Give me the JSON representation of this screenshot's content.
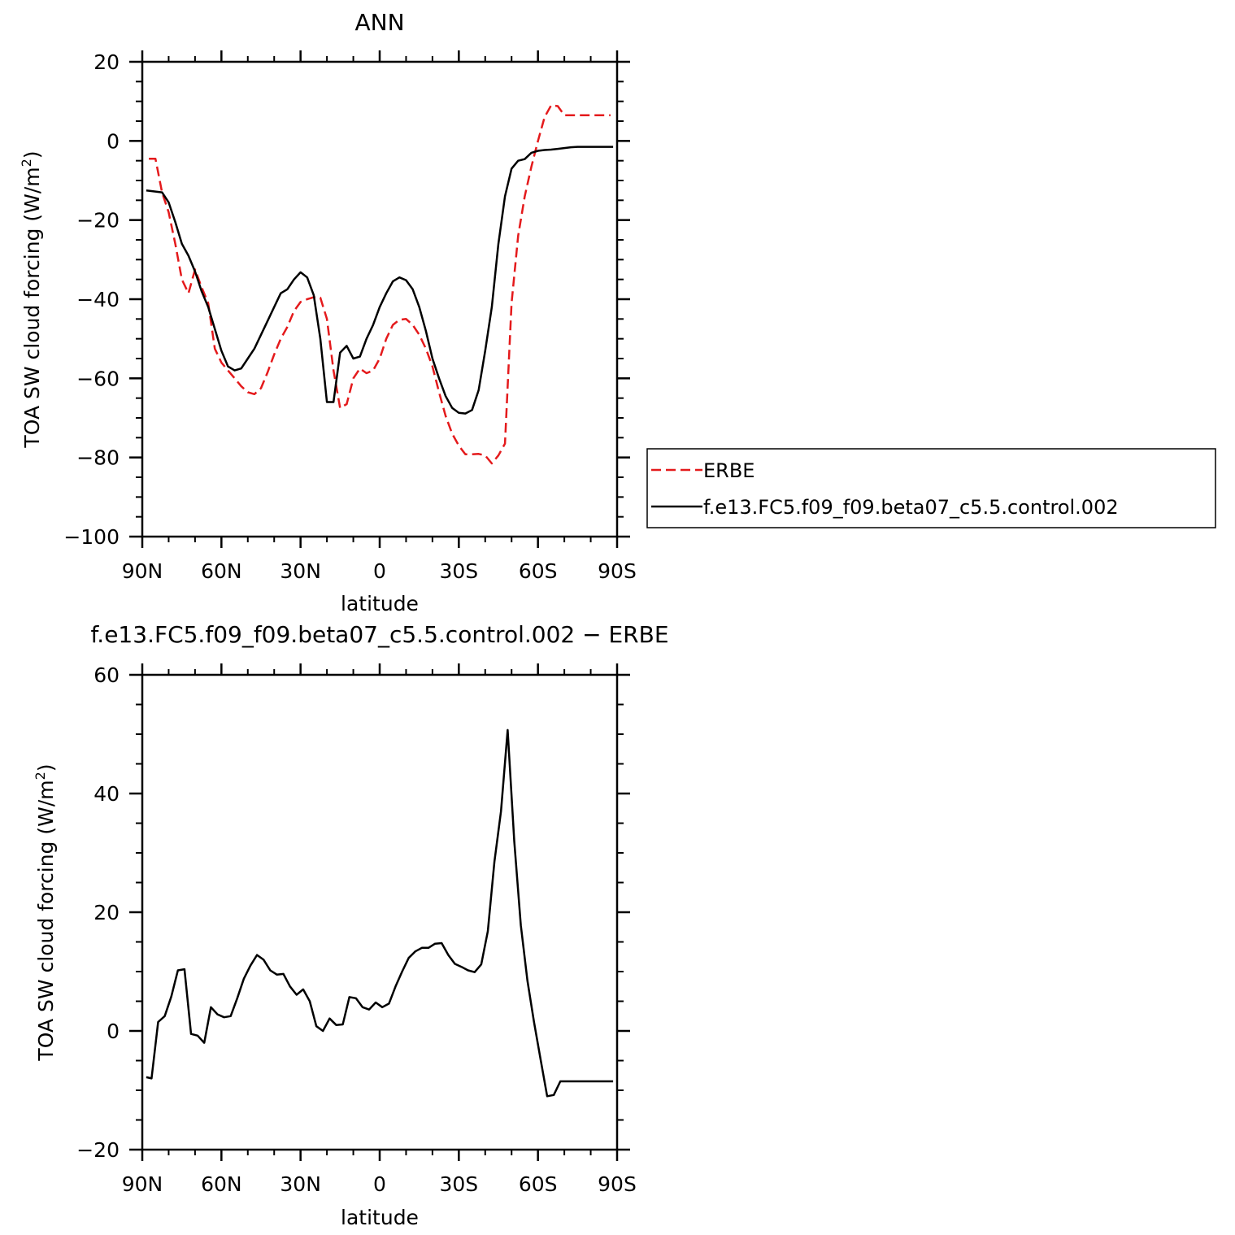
{
  "colors": {
    "model": "#000000",
    "obs": "#e41a1c",
    "axis": "#000000",
    "background": "#ffffff"
  },
  "chart_data": [
    {
      "type": "line",
      "title": "ANN",
      "xlabel": "latitude",
      "ylabel": "TOA SW cloud forcing (W/m²)",
      "ylabel_main": "TOA SW cloud forcing (W/m",
      "ylabel_sup": "2",
      "ylabel_end": ")",
      "xlim": [
        90,
        -90
      ],
      "ylim": [
        -100,
        20
      ],
      "xticks": [
        {
          "value": 90,
          "label": "90N"
        },
        {
          "value": 60,
          "label": "60N"
        },
        {
          "value": 30,
          "label": "30N"
        },
        {
          "value": 0,
          "label": "0"
        },
        {
          "value": -30,
          "label": "30S"
        },
        {
          "value": -60,
          "label": "60S"
        },
        {
          "value": -90,
          "label": "90S"
        }
      ],
      "yticks": [
        {
          "value": 20,
          "label": "20"
        },
        {
          "value": 0,
          "label": "0"
        },
        {
          "value": -20,
          "label": "−20"
        },
        {
          "value": -40,
          "label": "−40"
        },
        {
          "value": -60,
          "label": "−60"
        },
        {
          "value": -80,
          "label": "−80"
        },
        {
          "value": -100,
          "label": "−100"
        }
      ],
      "legend_position": "right",
      "series": [
        {
          "name": "ERBE",
          "color": "#e41a1c",
          "dash": "dashed",
          "x": [
            87.5,
            85,
            82.5,
            80,
            77.5,
            75,
            72.5,
            70,
            67.5,
            65,
            62.5,
            60,
            57.5,
            55,
            52.5,
            50,
            47.5,
            45,
            42.5,
            40,
            37.5,
            35,
            32.5,
            30,
            27.5,
            25,
            22.5,
            20,
            17.5,
            15,
            12.5,
            10,
            7.5,
            5,
            2.5,
            0,
            -2.5,
            -5,
            -7.5,
            -10,
            -12.5,
            -15,
            -17.5,
            -20,
            -22.5,
            -25,
            -27.5,
            -30,
            -32.5,
            -35,
            -37.5,
            -40,
            -42.5,
            -45,
            -47.5,
            -50,
            -52.5,
            -55,
            -57.5,
            -60,
            -62.5,
            -65,
            -67.5,
            -70,
            -72.5,
            -75,
            -77.5,
            -80,
            -82.5,
            -85,
            -87.5
          ],
          "y": [
            -4.5,
            -4.5,
            -13,
            -18,
            -26,
            -35,
            -38.5,
            -32.5,
            -37,
            -41,
            -52.5,
            -56,
            -58,
            -60,
            -62,
            -63.5,
            -64,
            -62.5,
            -58.5,
            -54,
            -50,
            -47,
            -43,
            -40.7,
            -40,
            -39.5,
            -39.6,
            -45,
            -58,
            -67.5,
            -66.5,
            -60,
            -57.5,
            -58.7,
            -58,
            -55,
            -50,
            -46.5,
            -45.2,
            -45,
            -46.5,
            -49,
            -52.5,
            -57,
            -63.5,
            -69.5,
            -74,
            -77,
            -79.2,
            -79.2,
            -79.1,
            -79.5,
            -81.5,
            -79.5,
            -76.5,
            -41,
            -24,
            -14,
            -6.5,
            0,
            6,
            9,
            8.8,
            6.5,
            6.5,
            6.5,
            6.5,
            6.5,
            6.5,
            6.5,
            6.5
          ]
        },
        {
          "name": "f.e13.FC5.f09_f09.beta07_c5.5.control.002",
          "color": "#000000",
          "dash": "solid",
          "x": [
            88.5,
            85,
            82.5,
            80,
            77.5,
            75,
            72.5,
            70,
            67.5,
            65,
            62.5,
            60,
            57.5,
            55,
            52.5,
            50,
            47.5,
            45,
            42.5,
            40,
            37.5,
            35,
            32.5,
            30,
            27.5,
            25,
            22.5,
            20,
            17.5,
            15,
            12.5,
            10,
            7.5,
            5,
            2.5,
            0,
            -2.5,
            -5,
            -7.5,
            -10,
            -12.5,
            -15,
            -17.5,
            -20,
            -22.5,
            -25,
            -27.5,
            -30,
            -32.5,
            -35,
            -37.5,
            -40,
            -42.5,
            -45,
            -47.5,
            -50,
            -52.5,
            -55,
            -57.5,
            -60,
            -62.5,
            -65,
            -67.5,
            -70,
            -72.5,
            -75,
            -77.5,
            -80,
            -82.5,
            -85,
            -88.5
          ],
          "y": [
            -12.5,
            -12.8,
            -13,
            -15.5,
            -20.5,
            -26,
            -29,
            -33,
            -38,
            -42,
            -47.5,
            -53,
            -57,
            -58,
            -57.5,
            -55,
            -52.5,
            -49,
            -45.5,
            -42,
            -38.5,
            -37.5,
            -35,
            -33.2,
            -34.5,
            -39,
            -50,
            -66,
            -66,
            -53.5,
            -51.8,
            -55,
            -54.5,
            -50,
            -46.5,
            -42,
            -38.5,
            -35.5,
            -34.5,
            -35.2,
            -37.5,
            -42,
            -48,
            -55,
            -60,
            -64.5,
            -67.5,
            -68.7,
            -68.9,
            -68,
            -63,
            -53,
            -42,
            -26,
            -14,
            -7,
            -5,
            -4.6,
            -3,
            -2.5,
            -2.3,
            -2.2,
            -2,
            -1.8,
            -1.6,
            -1.5,
            -1.5,
            -1.5,
            -1.5,
            -1.5,
            -1.5
          ]
        }
      ]
    },
    {
      "type": "line",
      "title": "f.e13.FC5.f09_f09.beta07_c5.5.control.002 − ERBE",
      "xlabel": "latitude",
      "ylabel": "TOA SW cloud forcing (W/m²)",
      "ylabel_main": "TOA SW cloud forcing (W/m",
      "ylabel_sup": "2",
      "ylabel_end": ")",
      "xlim": [
        90,
        -90
      ],
      "ylim": [
        -20,
        60
      ],
      "xticks": [
        {
          "value": 90,
          "label": "90N"
        },
        {
          "value": 60,
          "label": "60N"
        },
        {
          "value": 30,
          "label": "30N"
        },
        {
          "value": 0,
          "label": "0"
        },
        {
          "value": -30,
          "label": "30S"
        },
        {
          "value": -60,
          "label": "60S"
        },
        {
          "value": -90,
          "label": "90S"
        }
      ],
      "yticks": [
        {
          "value": 60,
          "label": "60"
        },
        {
          "value": 40,
          "label": "40"
        },
        {
          "value": 20,
          "label": "20"
        },
        {
          "value": 0,
          "label": "0"
        },
        {
          "value": -20,
          "label": "−20"
        }
      ],
      "series": [
        {
          "color": "#000000",
          "dash": "solid",
          "x": [
            88.5,
            86.5,
            84,
            81.5,
            79,
            76.5,
            74,
            71.5,
            69,
            66.5,
            64,
            61.5,
            59,
            56.5,
            54,
            51.5,
            49,
            46.5,
            44,
            41.5,
            39,
            36.5,
            34,
            31.5,
            29,
            26.5,
            24,
            21.5,
            19,
            16.5,
            14,
            11.5,
            9,
            6.5,
            4,
            1.5,
            -1,
            -3.5,
            -6,
            -8.5,
            -11,
            -13.5,
            -16,
            -18.5,
            -21,
            -23.5,
            -26,
            -28.5,
            -31,
            -33.5,
            -36,
            -38.5,
            -41,
            -43.5,
            -46,
            -48.5,
            -51,
            -53.5,
            -56,
            -58.5,
            -61,
            -63.5,
            -66,
            -68.5,
            -71,
            -73.5,
            -76,
            -78.5,
            -81,
            -83.5,
            -86,
            -88.5
          ],
          "y": [
            -7.8,
            -8,
            1.5,
            2.5,
            5.8,
            10.2,
            10.4,
            -0.5,
            -0.8,
            -2,
            4,
            2.8,
            2.3,
            2.5,
            5.5,
            8.8,
            11,
            12.8,
            12,
            10.2,
            9.5,
            9.6,
            7.5,
            6.1,
            7,
            5,
            0.8,
            0,
            2.1,
            1,
            1.1,
            5.7,
            5.5,
            4,
            3.6,
            4.8,
            4,
            4.6,
            7.5,
            10,
            12.3,
            13.4,
            14,
            14,
            14.7,
            14.8,
            12.8,
            11.3,
            10.8,
            10.2,
            9.9,
            11.2,
            16.8,
            28.5,
            37,
            50.7,
            32,
            17.8,
            8.5,
            1.5,
            -4.8,
            -11,
            -10.8,
            -8.5,
            -8.5,
            -8.5,
            -8.5,
            -8.5,
            -8.5,
            -8.5,
            -8.5,
            -8.5
          ]
        }
      ]
    }
  ]
}
